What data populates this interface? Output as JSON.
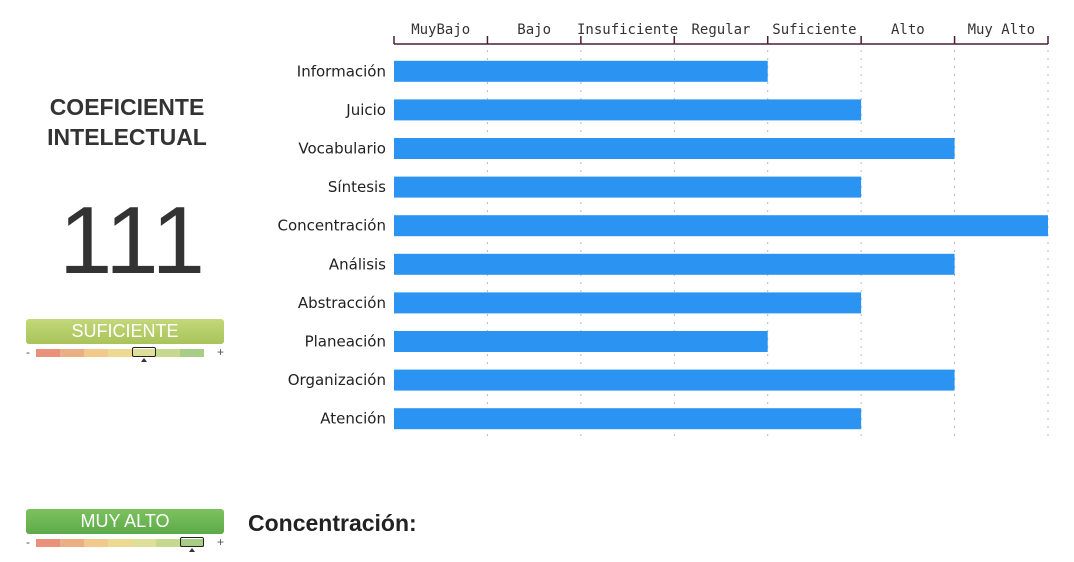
{
  "summary": {
    "title_line1": "COEFICIENTE",
    "title_line2": "INTELECTUAL",
    "score": "111",
    "level_badge": "SUFICIENTE",
    "level_index": 5,
    "scale_minus": "-",
    "scale_plus": "+"
  },
  "detail": {
    "level_badge": "MUY ALTO",
    "level_index": 7,
    "label": "Concentración:"
  },
  "colors": {
    "bar": "#2b93f2",
    "axis": "#4a1d3a",
    "grid": "#b8b8b8",
    "badge_suficiente": "#b2ca63",
    "badge_muy_alto": "#67b24f",
    "scale_segments": [
      "#e9917a",
      "#ecaf83",
      "#f0c98b",
      "#edd98f",
      "#dde096",
      "#c6d98f",
      "#a9cd84"
    ]
  },
  "chart_data": {
    "type": "bar",
    "orientation": "horizontal",
    "levels": [
      "MuyBajo",
      "Bajo",
      "Insuficiente",
      "Regular",
      "Suficiente",
      "Alto",
      "Muy Alto"
    ],
    "categories": [
      "Información",
      "Juicio",
      "Vocabulario",
      "Síntesis",
      "Concentración",
      "Análisis",
      "Abstracción",
      "Planeación",
      "Organización",
      "Atención"
    ],
    "values": [
      4,
      5,
      6,
      5,
      7,
      6,
      5,
      4,
      6,
      5
    ],
    "xlim": [
      0,
      7
    ],
    "grid": true,
    "legend": "none"
  }
}
